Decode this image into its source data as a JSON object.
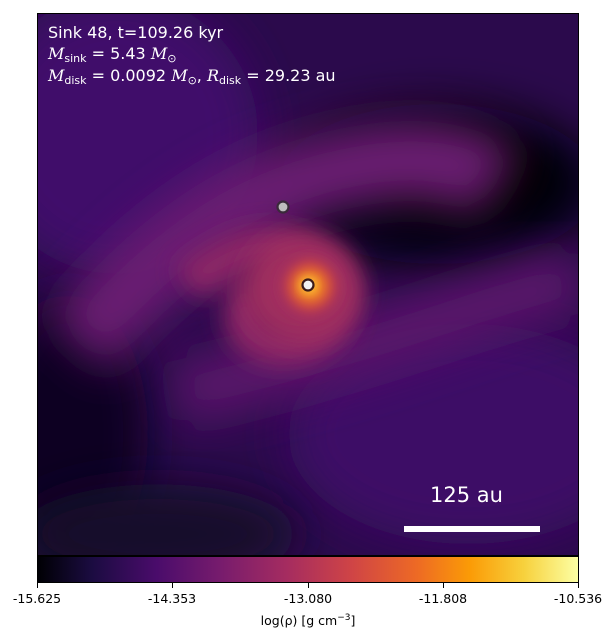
{
  "annotation": {
    "line1": "Sink 48, t=109.26 kyr",
    "sink_mass_symbol": "M",
    "sink_mass_sub": "sink",
    "sink_mass_value": " = 5.43 ",
    "disk_mass_symbol": "M",
    "disk_mass_sub": "disk",
    "disk_mass_value": " = 0.0092 ",
    "solar_symbol": "M",
    "solar_sub": "⊙",
    "sep": ", ",
    "disk_radius_symbol": "R",
    "disk_radius_sub": "disk",
    "disk_radius_value": " = 29.23 au"
  },
  "scale_bar": {
    "label": "125 au"
  },
  "colorbar": {
    "ticks": [
      "-15.625",
      "-14.353",
      "-13.080",
      "-11.808",
      "-10.536"
    ],
    "label_main": "log(ρ) [g cm",
    "label_exp": "−3",
    "label_end": "]",
    "colormap": "inferno"
  },
  "sinks": [
    {
      "name": "primary-sink",
      "fill": "#f2f2f2",
      "stroke": "#3a1a1a"
    },
    {
      "name": "secondary-sink",
      "fill": "#bdbdbd",
      "stroke": "#3a2a3a"
    }
  ]
}
